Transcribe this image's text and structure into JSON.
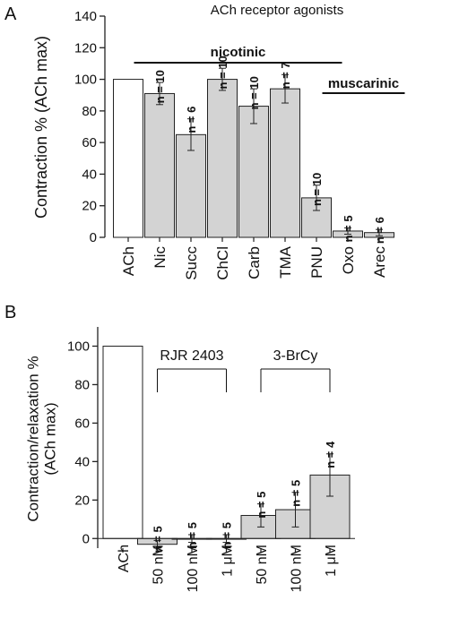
{
  "chart_data": [
    {
      "panel": "A",
      "type": "bar",
      "title": "ACh receptor agonists",
      "ylabel": "Contraction % (ACh max)",
      "xlabel": "",
      "ylim": [
        0,
        140
      ],
      "yticks": [
        0,
        20,
        40,
        60,
        80,
        100,
        120,
        140
      ],
      "categories": [
        "ACh",
        "Nic",
        "Succ",
        "ChCl",
        "Carb",
        "TMA",
        "PNU",
        "Oxo",
        "Arec"
      ],
      "values": [
        100,
        91,
        65,
        100,
        83,
        94,
        25,
        4,
        3
      ],
      "errors": [
        0,
        7,
        10,
        7,
        11,
        9,
        8,
        2,
        2
      ],
      "n_labels": [
        "",
        "n = 10",
        "n = 6",
        "n = 10",
        "n = 10",
        "n = 7",
        "n = 10",
        "n = 5",
        "n = 6"
      ],
      "groups": [
        {
          "label": "nicotinic",
          "from": 1,
          "to": 6
        },
        {
          "label": "muscarinic",
          "from": 7,
          "to": 8
        }
      ],
      "colors": {
        "reference": "#ffffff",
        "bars": "#d3d3d3",
        "outline": "#222222"
      }
    },
    {
      "panel": "B",
      "type": "bar",
      "title": "",
      "ylabel": "Contraction/relaxation %\n(ACh max)",
      "xlabel": "",
      "ylim": [
        -5,
        110
      ],
      "yticks": [
        0,
        20,
        40,
        60,
        80,
        100
      ],
      "categories": [
        "ACh",
        "50 nM",
        "100 nM",
        "1 μM",
        "50 nM",
        "100 nM",
        "1 μM"
      ],
      "values": [
        100,
        -3,
        0,
        0,
        12,
        15,
        33
      ],
      "errors": [
        0,
        2,
        2,
        2,
        6,
        9,
        11
      ],
      "n_labels": [
        "",
        "n = 5",
        "n = 5",
        "n = 5",
        "n = 5",
        "n = 5",
        "n = 4"
      ],
      "groups": [
        {
          "label": "RJR 2403",
          "from": 1,
          "to": 3
        },
        {
          "label": "3-BrCy",
          "from": 4,
          "to": 6
        }
      ],
      "colors": {
        "reference": "#ffffff",
        "bars": "#d3d3d3",
        "outline": "#222222"
      }
    }
  ]
}
